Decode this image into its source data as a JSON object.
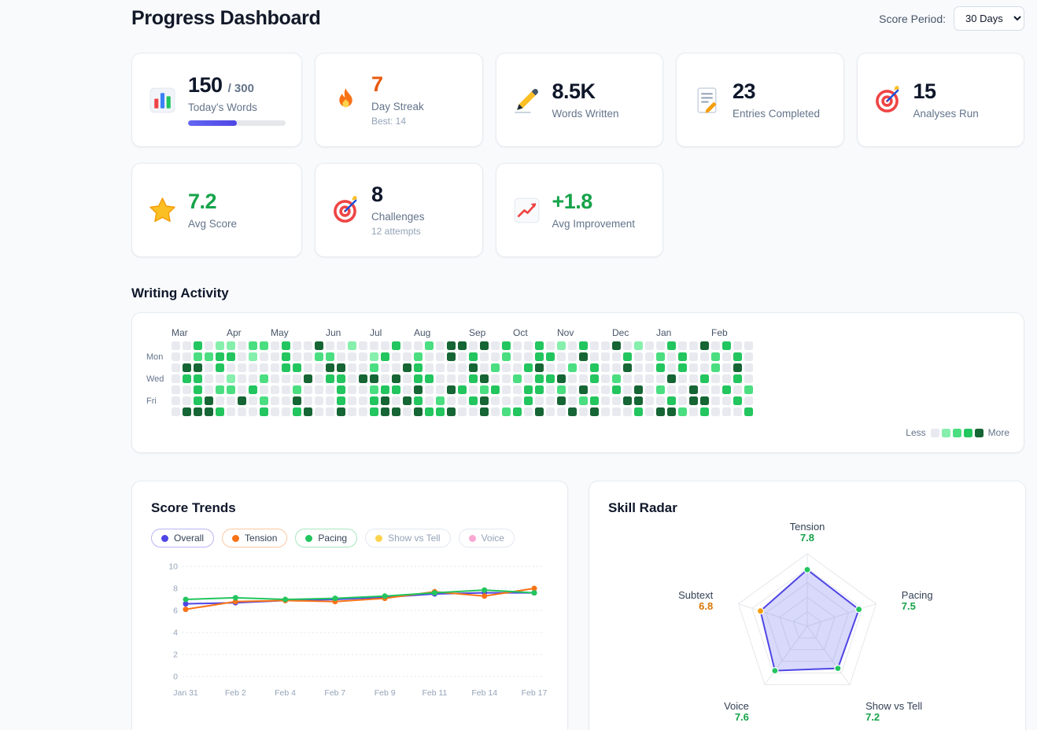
{
  "page": {
    "title": "Progress Dashboard",
    "score_period_label": "Score Period:",
    "score_period_value": "30 Days"
  },
  "stats": [
    {
      "name": "todays-words",
      "icon": "bar-chart",
      "value": "150",
      "suffix": "/ 300",
      "label": "Today's Words",
      "progress_pct": 50
    },
    {
      "name": "day-streak",
      "icon": "fire",
      "value": "7",
      "value_color": "#ea580c",
      "label": "Day Streak",
      "sub": "Best: 14"
    },
    {
      "name": "words-written",
      "icon": "writing-hand",
      "value": "8.5K",
      "label": "Words Written"
    },
    {
      "name": "entries-completed",
      "icon": "memo",
      "value": "23",
      "label": "Entries Completed"
    },
    {
      "name": "analyses-run",
      "icon": "target",
      "value": "15",
      "label": "Analyses Run"
    },
    {
      "name": "avg-score",
      "icon": "star",
      "value": "7.2",
      "value_color": "#16a34a",
      "label": "Avg Score"
    },
    {
      "name": "challenges",
      "icon": "target",
      "value": "8",
      "label": "Challenges",
      "sub": "12 attempts"
    },
    {
      "name": "avg-improvement",
      "icon": "chart-up",
      "value": "+1.8",
      "value_color": "#16a34a",
      "label": "Avg Improvement"
    }
  ],
  "activity": {
    "title": "Writing Activity",
    "months": [
      {
        "label": "Mar",
        "week": 0
      },
      {
        "label": "Apr",
        "week": 5
      },
      {
        "label": "May",
        "week": 9
      },
      {
        "label": "Jun",
        "week": 14
      },
      {
        "label": "Jul",
        "week": 18
      },
      {
        "label": "Aug",
        "week": 22
      },
      {
        "label": "Sep",
        "week": 27
      },
      {
        "label": "Oct",
        "week": 31
      },
      {
        "label": "Nov",
        "week": 35
      },
      {
        "label": "Dec",
        "week": 40
      },
      {
        "label": "Jan",
        "week": 44
      },
      {
        "label": "Feb",
        "week": 49
      }
    ],
    "day_labels": [
      {
        "label": "Mon",
        "row": 1
      },
      {
        "label": "Wed",
        "row": 3
      },
      {
        "label": "Fri",
        "row": 5
      }
    ],
    "weeks": 53,
    "levels": [
      "#e8eaf0",
      "#86efac",
      "#4ade80",
      "#22c55e",
      "#166534"
    ],
    "rows": [
      "00301102203004001000300204404030030103004010030040300",
      "00223301003002200013002004030020033004000300203002030",
      "04403000003300440020043000040200340020300400303002040",
      "03300100200040330440403300034002033400302000040030030",
      "00302203000200030023304004302300330204003040200400302",
      "00340040200400030034043020034000300402300440030440030",
      "04443000300340040034404334004023040040400030442030003"
    ],
    "legend": {
      "less": "Less",
      "more": "More"
    }
  },
  "chart_data": [
    {
      "type": "line",
      "title": "Score Trends",
      "x": [
        "Jan 31",
        "Feb 2",
        "Feb 4",
        "Feb 7",
        "Feb 9",
        "Feb 11",
        "Feb 14",
        "Feb 17"
      ],
      "ylim": [
        0,
        10
      ],
      "yticks": [
        0,
        2,
        4,
        6,
        8,
        10
      ],
      "grid": "dotted-horizontal",
      "legend_position": "top",
      "legend": [
        {
          "name": "Overall",
          "color": "#4f46e5",
          "active": true
        },
        {
          "name": "Tension",
          "color": "#f97316",
          "active": true
        },
        {
          "name": "Pacing",
          "color": "#22c55e",
          "active": true
        },
        {
          "name": "Show vs Tell",
          "color": "#fcd34d",
          "active": false
        },
        {
          "name": "Voice",
          "color": "#f9a8d4",
          "active": false
        }
      ],
      "series": [
        {
          "name": "Overall",
          "color": "#4f46e5",
          "values": [
            6.6,
            6.7,
            6.9,
            7.0,
            7.2,
            7.5,
            7.6,
            7.6
          ]
        },
        {
          "name": "Tension",
          "color": "#f97316",
          "values": [
            6.1,
            6.8,
            6.9,
            6.8,
            7.1,
            7.7,
            7.3,
            8.0
          ]
        },
        {
          "name": "Pacing",
          "color": "#22c55e",
          "values": [
            7.0,
            7.15,
            7.0,
            7.1,
            7.3,
            7.6,
            7.85,
            7.6
          ]
        }
      ]
    },
    {
      "type": "radar",
      "title": "Skill Radar",
      "max": 10,
      "rings": [
        2,
        4,
        6,
        8,
        10
      ],
      "fill": "rgba(99,102,241,0.25)",
      "stroke": "#4f46e5",
      "axes": [
        {
          "label": "Tension",
          "value": 7.8,
          "value_color": "#16a34a",
          "dot_color": "#22c55e"
        },
        {
          "label": "Pacing",
          "value": 7.5,
          "value_color": "#16a34a",
          "dot_color": "#22c55e"
        },
        {
          "label": "Show vs Tell",
          "value": 7.2,
          "value_color": "#16a34a",
          "dot_color": "#22c55e"
        },
        {
          "label": "Voice",
          "value": 7.6,
          "value_color": "#16a34a",
          "dot_color": "#22c55e"
        },
        {
          "label": "Subtext",
          "value": 6.8,
          "value_color": "#d97706",
          "dot_color": "#f59e0b"
        }
      ]
    }
  ]
}
